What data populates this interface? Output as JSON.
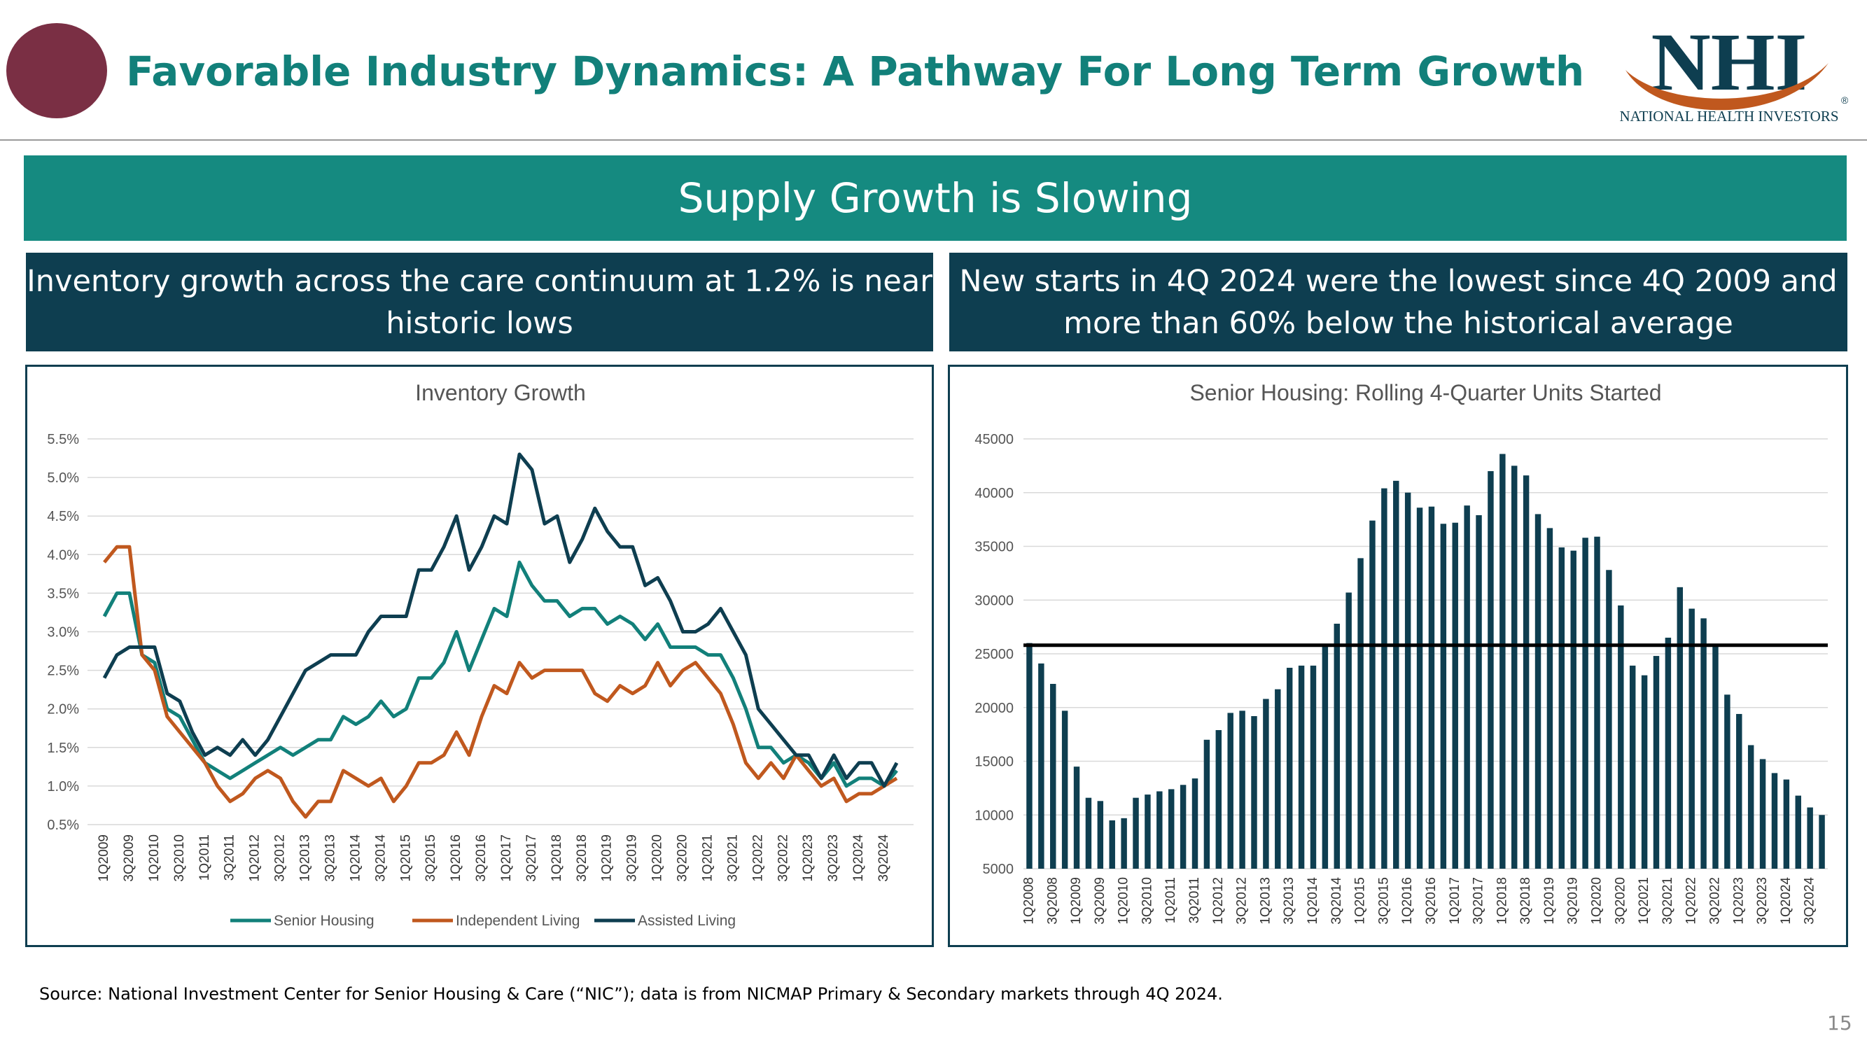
{
  "header": {
    "title": "Favorable Industry Dynamics: A Pathway For Long Term Growth",
    "logo_text": "NHI",
    "logo_subtext": "NATIONAL HEALTH INVESTORS",
    "registered_mark": "®"
  },
  "banner": {
    "text": "Supply Growth is Slowing"
  },
  "left_panel": {
    "heading": "Inventory growth across the care continuum at 1.2% is near historic lows"
  },
  "right_panel": {
    "heading": "New starts in 4Q 2024 were the lowest since 4Q 2009 and more than 60% below the historical average"
  },
  "footer": {
    "source": "Source:  National Investment Center for Senior Housing & Care (“NIC”); data is from NICMAP Primary & Secondary markets through 4Q 2024.",
    "page_number": "15"
  },
  "colors": {
    "teal": "#12807a",
    "navy": "#0e3e50",
    "orange": "#c0581e",
    "maroon": "#7a2f44",
    "banner": "#158a80"
  },
  "chart_data": [
    {
      "type": "line",
      "title": "Inventory Growth",
      "x_tick_labels": [
        "1Q2009",
        "3Q2009",
        "1Q2010",
        "3Q2010",
        "1Q2011",
        "3Q2011",
        "1Q2012",
        "3Q2012",
        "1Q2013",
        "3Q2013",
        "1Q2014",
        "3Q2014",
        "1Q2015",
        "3Q2015",
        "1Q2016",
        "3Q2016",
        "1Q2017",
        "3Q2017",
        "1Q2018",
        "3Q2018",
        "1Q2019",
        "3Q2019",
        "1Q2020",
        "3Q2020",
        "1Q2021",
        "3Q2021",
        "1Q2022",
        "3Q2022",
        "1Q2023",
        "3Q2023",
        "1Q2024",
        "3Q2024"
      ],
      "y_ticks": [
        0.5,
        1.0,
        1.5,
        2.0,
        2.5,
        3.0,
        3.5,
        4.0,
        4.5,
        5.0,
        5.5
      ],
      "y_tick_labels": [
        "0.5%",
        "1.0%",
        "1.5%",
        "2.0%",
        "2.5%",
        "3.0%",
        "3.5%",
        "4.0%",
        "4.5%",
        "5.0%",
        "5.5%"
      ],
      "ylim": [
        0.5,
        5.5
      ],
      "series": [
        {
          "name": "Senior Housing",
          "color": "#12807a",
          "values": [
            3.2,
            3.5,
            3.5,
            2.7,
            2.6,
            2.0,
            1.9,
            1.6,
            1.3,
            1.2,
            1.1,
            1.2,
            1.3,
            1.4,
            1.5,
            1.4,
            1.5,
            1.6,
            1.6,
            1.9,
            1.8,
            1.9,
            2.1,
            1.9,
            2.0,
            2.4,
            2.4,
            2.6,
            3.0,
            2.5,
            2.9,
            3.3,
            3.2,
            3.9,
            3.6,
            3.4,
            3.4,
            3.2,
            3.3,
            3.3,
            3.1,
            3.2,
            3.1,
            2.9,
            3.1,
            2.8,
            2.8,
            2.8,
            2.7,
            2.7,
            2.4,
            2.0,
            1.5,
            1.5,
            1.3,
            1.4,
            1.3,
            1.1,
            1.3,
            1.0,
            1.1,
            1.1,
            1.0,
            1.2
          ]
        },
        {
          "name": "Independent Living",
          "color": "#c0581e",
          "values": [
            3.9,
            4.1,
            4.1,
            2.7,
            2.5,
            1.9,
            1.7,
            1.5,
            1.3,
            1.0,
            0.8,
            0.9,
            1.1,
            1.2,
            1.1,
            0.8,
            0.6,
            0.8,
            0.8,
            1.2,
            1.1,
            1.0,
            1.1,
            0.8,
            1.0,
            1.3,
            1.3,
            1.4,
            1.7,
            1.4,
            1.9,
            2.3,
            2.2,
            2.6,
            2.4,
            2.5,
            2.5,
            2.5,
            2.5,
            2.2,
            2.1,
            2.3,
            2.2,
            2.3,
            2.6,
            2.3,
            2.5,
            2.6,
            2.4,
            2.2,
            1.8,
            1.3,
            1.1,
            1.3,
            1.1,
            1.4,
            1.2,
            1.0,
            1.1,
            0.8,
            0.9,
            0.9,
            1.0,
            1.1
          ]
        },
        {
          "name": "Assisted Living",
          "color": "#0e3e50",
          "values": [
            2.4,
            2.7,
            2.8,
            2.8,
            2.8,
            2.2,
            2.1,
            1.7,
            1.4,
            1.5,
            1.4,
            1.6,
            1.4,
            1.6,
            1.9,
            2.2,
            2.5,
            2.6,
            2.7,
            2.7,
            2.7,
            3.0,
            3.2,
            3.2,
            3.2,
            3.8,
            3.8,
            4.1,
            4.5,
            3.8,
            4.1,
            4.5,
            4.4,
            5.3,
            5.1,
            4.4,
            4.5,
            3.9,
            4.2,
            4.6,
            4.3,
            4.1,
            4.1,
            3.6,
            3.7,
            3.4,
            3.0,
            3.0,
            3.1,
            3.3,
            3.0,
            2.7,
            2.0,
            1.8,
            1.6,
            1.4,
            1.4,
            1.1,
            1.4,
            1.1,
            1.3,
            1.3,
            1.0,
            1.3
          ]
        }
      ],
      "legend": "bottom"
    },
    {
      "type": "bar",
      "title": "Senior Housing: Rolling 4-Quarter Units Started",
      "x_tick_labels": [
        "1Q2008",
        "3Q2008",
        "1Q2009",
        "3Q2009",
        "1Q2010",
        "3Q2010",
        "1Q2011",
        "3Q2011",
        "1Q2012",
        "3Q2012",
        "1Q2013",
        "3Q2013",
        "1Q2014",
        "3Q2014",
        "1Q2015",
        "3Q2015",
        "1Q2016",
        "3Q2016",
        "1Q2017",
        "3Q2017",
        "1Q2018",
        "3Q2018",
        "1Q2019",
        "3Q2019",
        "1Q2020",
        "3Q2020",
        "1Q2021",
        "3Q2021",
        "1Q2022",
        "3Q2022",
        "1Q2023",
        "3Q2023",
        "1Q2024",
        "3Q2024"
      ],
      "y_ticks": [
        5000,
        10000,
        15000,
        20000,
        25000,
        30000,
        35000,
        40000,
        45000
      ],
      "ylim": [
        5000,
        45000
      ],
      "values": [
        26000,
        24100,
        22200,
        19700,
        14500,
        11600,
        11300,
        9500,
        9700,
        11600,
        11900,
        12200,
        12400,
        12800,
        13400,
        17000,
        17900,
        19500,
        19700,
        19200,
        20800,
        21700,
        23700,
        23900,
        23900,
        25800,
        27800,
        30700,
        33900,
        37400,
        40400,
        41100,
        40000,
        38600,
        38700,
        37100,
        37200,
        38800,
        37900,
        42000,
        43600,
        42500,
        41600,
        38000,
        36700,
        34900,
        34600,
        35800,
        35900,
        32800,
        29500,
        23900,
        23000,
        24800,
        26500,
        31200,
        29200,
        28300,
        25800,
        21200,
        19400,
        16500,
        15200,
        13900,
        13300,
        11800,
        10700,
        10000
      ],
      "reference_line": 25800,
      "bar_color": "#0e3e50"
    }
  ]
}
